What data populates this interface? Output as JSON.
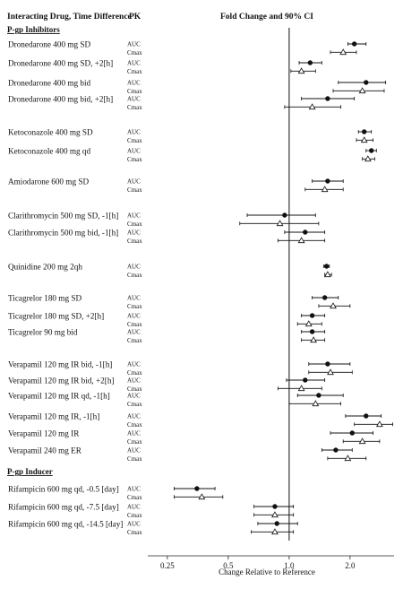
{
  "chart_data": {
    "type": "forest",
    "header": {
      "drug": "Interacting Drug, Time Difference",
      "pk": "PK",
      "effect": "Fold Change and 90% CI"
    },
    "xlabel": "Change Relative to Reference",
    "x_scale": "log",
    "xlim": [
      0.2,
      3.3
    ],
    "x_ticks": [
      0.25,
      0.5,
      1.0,
      2.0
    ],
    "x_tick_labels": [
      "0.25",
      "0.5",
      "1.0",
      "2.0"
    ],
    "reference_line": 1.0,
    "markers": {
      "AUC": "filled-circle",
      "Cmax": "open-triangle"
    },
    "groups": [
      {
        "title": "P-gp Inhibitors",
        "drugs": [
          {
            "label": "Dronedarone 400 mg SD",
            "rows": [
              {
                "pk": "AUC",
                "est": 2.1,
                "lo": 1.95,
                "hi": 2.4
              },
              {
                "pk": "Cmax",
                "est": 1.85,
                "lo": 1.6,
                "hi": 2.15
              }
            ]
          },
          {
            "label": "Dronedarone 400 mg SD, +2[h]",
            "rows": [
              {
                "pk": "AUC",
                "est": 1.27,
                "lo": 1.12,
                "hi": 1.45
              },
              {
                "pk": "Cmax",
                "est": 1.15,
                "lo": 1.02,
                "hi": 1.35
              }
            ]
          },
          {
            "label": "Dronedarone 400 mg bid",
            "rows": [
              {
                "pk": "AUC",
                "est": 2.4,
                "lo": 1.75,
                "hi": 3.0
              },
              {
                "pk": "Cmax",
                "est": 2.3,
                "lo": 1.65,
                "hi": 2.95
              }
            ]
          },
          {
            "label": "Dronedarone 400 mg bid, +2[h]",
            "rows": [
              {
                "pk": "AUC",
                "est": 1.55,
                "lo": 1.15,
                "hi": 2.1
              },
              {
                "pk": "Cmax",
                "est": 1.3,
                "lo": 0.95,
                "hi": 1.8
              }
            ]
          },
          {
            "label": "Ketoconazole 400 mg SD",
            "rows": [
              {
                "pk": "AUC",
                "est": 2.35,
                "lo": 2.2,
                "hi": 2.55
              },
              {
                "pk": "Cmax",
                "est": 2.35,
                "lo": 2.15,
                "hi": 2.6
              }
            ]
          },
          {
            "label": "Ketoconazole 400 mg qd",
            "rows": [
              {
                "pk": "AUC",
                "est": 2.55,
                "lo": 2.4,
                "hi": 2.7
              },
              {
                "pk": "Cmax",
                "est": 2.45,
                "lo": 2.3,
                "hi": 2.65
              }
            ]
          },
          {
            "label": "Amiodarone 600 mg SD",
            "rows": [
              {
                "pk": "AUC",
                "est": 1.55,
                "lo": 1.3,
                "hi": 1.85
              },
              {
                "pk": "Cmax",
                "est": 1.5,
                "lo": 1.2,
                "hi": 1.85
              }
            ]
          },
          {
            "label": "Clarithromycin 500 mg SD, -1[h]",
            "rows": [
              {
                "pk": "AUC",
                "est": 0.95,
                "lo": 0.62,
                "hi": 1.35
              },
              {
                "pk": "Cmax",
                "est": 0.9,
                "lo": 0.57,
                "hi": 1.4
              }
            ]
          },
          {
            "label": "Clarithromycin 500 mg bid, -1[h]",
            "rows": [
              {
                "pk": "AUC",
                "est": 1.2,
                "lo": 0.95,
                "hi": 1.5
              },
              {
                "pk": "Cmax",
                "est": 1.15,
                "lo": 0.88,
                "hi": 1.5
              }
            ]
          },
          {
            "label": "Quinidine 200 mg 2qh",
            "rows": [
              {
                "pk": "AUC",
                "est": 1.53,
                "lo": 1.48,
                "hi": 1.58
              },
              {
                "pk": "Cmax",
                "est": 1.55,
                "lo": 1.5,
                "hi": 1.62
              }
            ]
          },
          {
            "label": "Ticagrelor 180 mg SD",
            "rows": [
              {
                "pk": "AUC",
                "est": 1.5,
                "lo": 1.3,
                "hi": 1.75
              },
              {
                "pk": "Cmax",
                "est": 1.65,
                "lo": 1.4,
                "hi": 2.0
              }
            ]
          },
          {
            "label": "Ticagrelor 180 mg SD, +2[h]",
            "rows": [
              {
                "pk": "AUC",
                "est": 1.3,
                "lo": 1.15,
                "hi": 1.5
              },
              {
                "pk": "Cmax",
                "est": 1.25,
                "lo": 1.1,
                "hi": 1.45
              }
            ]
          },
          {
            "label": "Ticagrelor 90 mg bid",
            "rows": [
              {
                "pk": "AUC",
                "est": 1.3,
                "lo": 1.15,
                "hi": 1.5
              },
              {
                "pk": "Cmax",
                "est": 1.32,
                "lo": 1.15,
                "hi": 1.5
              }
            ]
          },
          {
            "label": "Verapamil 120 mg IR bid, -1[h]",
            "rows": [
              {
                "pk": "AUC",
                "est": 1.55,
                "lo": 1.25,
                "hi": 2.0
              },
              {
                "pk": "Cmax",
                "est": 1.6,
                "lo": 1.25,
                "hi": 2.05
              }
            ]
          },
          {
            "label": "Verapamil 120 mg IR bid, +2[h]",
            "rows": [
              {
                "pk": "AUC",
                "est": 1.2,
                "lo": 0.97,
                "hi": 1.5
              },
              {
                "pk": "Cmax",
                "est": 1.15,
                "lo": 0.88,
                "hi": 1.45
              }
            ]
          },
          {
            "label": "Verapamil 120 mg IR qd, -1[h]",
            "rows": [
              {
                "pk": "AUC",
                "est": 1.4,
                "lo": 1.1,
                "hi": 1.85
              },
              {
                "pk": "Cmax",
                "est": 1.35,
                "lo": 1.0,
                "hi": 1.8
              }
            ]
          },
          {
            "label": "Verapamil 120 mg IR, -1[h]",
            "rows": [
              {
                "pk": "AUC",
                "est": 2.4,
                "lo": 1.9,
                "hi": 2.85
              },
              {
                "pk": "Cmax",
                "est": 2.8,
                "lo": 2.1,
                "hi": 3.25
              }
            ]
          },
          {
            "label": "Verapamil 120 mg IR",
            "rows": [
              {
                "pk": "AUC",
                "est": 2.05,
                "lo": 1.6,
                "hi": 2.6
              },
              {
                "pk": "Cmax",
                "est": 2.3,
                "lo": 1.85,
                "hi": 2.8
              }
            ]
          },
          {
            "label": "Verapamil 240 mg ER",
            "rows": [
              {
                "pk": "AUC",
                "est": 1.7,
                "lo": 1.45,
                "hi": 2.05
              },
              {
                "pk": "Cmax",
                "est": 1.95,
                "lo": 1.55,
                "hi": 2.4
              }
            ]
          }
        ]
      },
      {
        "title": "P-gp Inducer",
        "drugs": [
          {
            "label": "Rifampicin 600 mg qd, -0.5 [day]",
            "rows": [
              {
                "pk": "AUC",
                "est": 0.35,
                "lo": 0.27,
                "hi": 0.43
              },
              {
                "pk": "Cmax",
                "est": 0.37,
                "lo": 0.27,
                "hi": 0.47
              }
            ]
          },
          {
            "label": "Rifampicin 600 mg qd, -7.5 [day]",
            "rows": [
              {
                "pk": "AUC",
                "est": 0.85,
                "lo": 0.67,
                "hi": 1.05
              },
              {
                "pk": "Cmax",
                "est": 0.85,
                "lo": 0.67,
                "hi": 1.05
              }
            ]
          },
          {
            "label": "Rifampicin 600 mg qd, -14.5 [day]",
            "rows": [
              {
                "pk": "AUC",
                "est": 0.87,
                "lo": 0.7,
                "hi": 1.1
              },
              {
                "pk": "Cmax",
                "est": 0.85,
                "lo": 0.65,
                "hi": 1.05
              }
            ]
          }
        ]
      }
    ]
  }
}
